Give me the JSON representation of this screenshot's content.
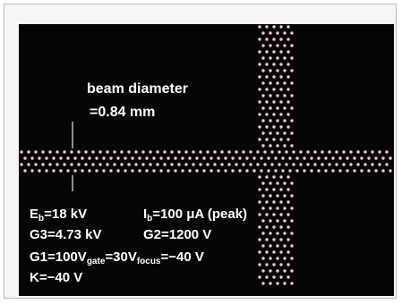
{
  "annotation": {
    "title": "beam diameter",
    "value": "=0.84 mm"
  },
  "parameters": [
    [
      [
        "E",
        "b",
        "=18 kV"
      ],
      [
        "I",
        "b",
        "=100 μA (peak)"
      ]
    ],
    [
      [
        "G3=4.73 kV"
      ],
      [
        "G2=1200 V"
      ]
    ],
    [
      [
        "G1=100V",
        "gate",
        "=30V",
        "focus",
        "=−40 V"
      ]
    ],
    [
      [
        "K=−40 V"
      ]
    ]
  ]
}
